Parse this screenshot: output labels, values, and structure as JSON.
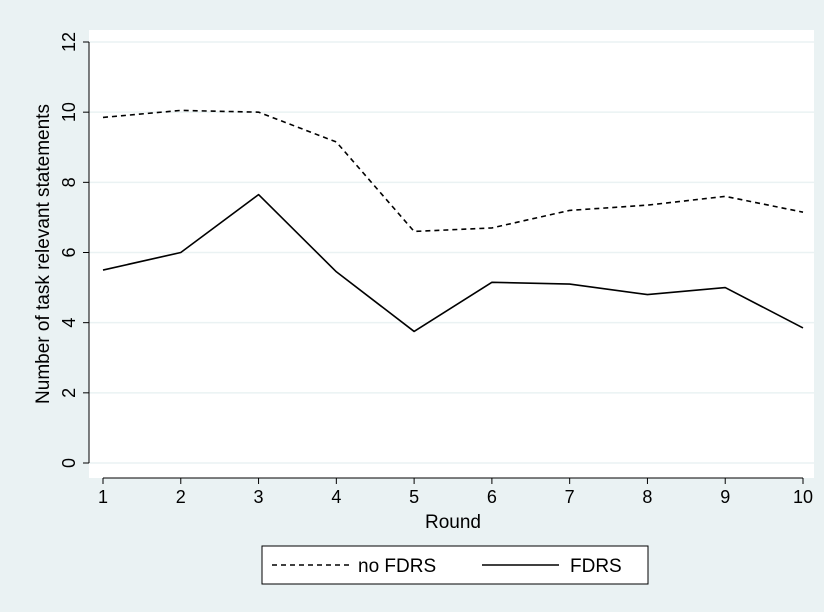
{
  "chart_data": {
    "type": "line",
    "title": "",
    "xlabel": "Round",
    "ylabel": "Number of task relevant statements",
    "x": [
      1,
      2,
      3,
      4,
      5,
      6,
      7,
      8,
      9,
      10
    ],
    "x_ticks": [
      "1",
      "2",
      "3",
      "4",
      "5",
      "6",
      "7",
      "8",
      "9",
      "10"
    ],
    "y_ticks": [
      "0",
      "2",
      "4",
      "6",
      "8",
      "10",
      "12"
    ],
    "xlim": [
      1,
      10
    ],
    "ylim": [
      0,
      12
    ],
    "grid": "horizontal",
    "legend_position": "bottom",
    "series": [
      {
        "name": "no FDRS",
        "style": "dashed",
        "color": "#000000",
        "values": [
          9.85,
          10.05,
          10.0,
          9.15,
          6.6,
          6.7,
          7.2,
          7.35,
          7.6,
          7.15
        ]
      },
      {
        "name": "FDRS",
        "style": "solid",
        "color": "#000000",
        "values": [
          5.5,
          6.0,
          7.65,
          5.45,
          3.75,
          5.15,
          5.1,
          4.8,
          5.0,
          3.85
        ]
      }
    ],
    "colors": {
      "outer_background": "#eaf2f3",
      "plot_background": "#ffffff",
      "gridline": "#eaf2f3"
    }
  }
}
